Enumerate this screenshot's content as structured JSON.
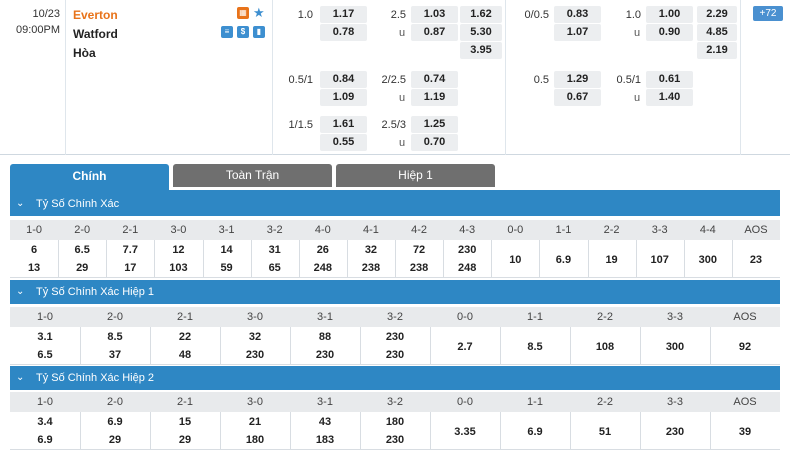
{
  "match": {
    "date": "10/23",
    "time": "09:00PM",
    "home": "Everton",
    "away": "Watford",
    "draw": "Hòa",
    "more_count": "72",
    "icons": [
      "stats-icon",
      "dollar-icon",
      "chart-icon",
      "favorite-star-icon",
      "tv-icon"
    ]
  },
  "odds": {
    "ft_hdp": [
      {
        "line": "1.0",
        "home": "1.17",
        "away": "0.78"
      },
      {
        "line": "0.5/1",
        "home": "0.84",
        "away": "1.09"
      },
      {
        "line": "1/1.5",
        "home": "1.61",
        "away": "0.55"
      }
    ],
    "ft_ou": [
      {
        "line": "2.5",
        "over": "1.03",
        "u": "u",
        "under": "0.87"
      },
      {
        "line": "2/2.5",
        "over": "0.74",
        "u": "u",
        "under": "1.19"
      },
      {
        "line": "2.5/3",
        "over": "1.25",
        "u": "u",
        "under": "0.70"
      }
    ],
    "ft_1x2": [
      "1.62",
      "5.30",
      "3.95"
    ],
    "h1_hdp": [
      {
        "line": "0/0.5",
        "home": "0.83",
        "away": "1.07"
      },
      {
        "line": "0.5",
        "home": "1.29",
        "away": "0.67"
      }
    ],
    "h1_ou": [
      {
        "line": "1.0",
        "over": "1.00",
        "u": "u",
        "under": "0.90"
      },
      {
        "line": "0.5/1",
        "over": "0.61",
        "u": "u",
        "under": "1.40"
      }
    ],
    "h1_1x2": [
      "2.29",
      "4.85",
      "2.19"
    ]
  },
  "tabs": [
    {
      "label": "Chính",
      "active": true
    },
    {
      "label": "Toàn Trận",
      "active": false
    },
    {
      "label": "Hiệp 1",
      "active": false
    }
  ],
  "sections": [
    {
      "title": "Tỷ Số Chính Xác",
      "headers": [
        "1-0",
        "2-0",
        "2-1",
        "3-0",
        "3-1",
        "3-2",
        "4-0",
        "4-1",
        "4-2",
        "4-3",
        "0-0",
        "1-1",
        "2-2",
        "3-3",
        "4-4",
        "AOS"
      ],
      "cells": [
        [
          "6",
          "13"
        ],
        [
          "6.5",
          "29"
        ],
        [
          "7.7",
          "17"
        ],
        [
          "12",
          "103"
        ],
        [
          "14",
          "59"
        ],
        [
          "31",
          "65"
        ],
        [
          "26",
          "248"
        ],
        [
          "32",
          "238"
        ],
        [
          "72",
          "238"
        ],
        [
          "230",
          "248"
        ],
        [
          "10"
        ],
        [
          "6.9"
        ],
        [
          "19"
        ],
        [
          "107"
        ],
        [
          "300"
        ],
        [
          "23"
        ]
      ]
    },
    {
      "title": "Tỷ Số Chính Xác Hiệp 1",
      "headers": [
        "1-0",
        "2-0",
        "2-1",
        "3-0",
        "3-1",
        "3-2",
        "0-0",
        "1-1",
        "2-2",
        "3-3",
        "AOS"
      ],
      "cells": [
        [
          "3.1",
          "6.5"
        ],
        [
          "8.5",
          "37"
        ],
        [
          "22",
          "48"
        ],
        [
          "32",
          "230"
        ],
        [
          "88",
          "230"
        ],
        [
          "230",
          "230"
        ],
        [
          "2.7"
        ],
        [
          "8.5"
        ],
        [
          "108"
        ],
        [
          "300"
        ],
        [
          "92"
        ]
      ]
    },
    {
      "title": "Tỷ Số Chính Xác Hiệp 2",
      "headers": [
        "1-0",
        "2-0",
        "2-1",
        "3-0",
        "3-1",
        "3-2",
        "0-0",
        "1-1",
        "2-2",
        "3-3",
        "AOS"
      ],
      "cells": [
        [
          "3.4",
          "6.9"
        ],
        [
          "6.9",
          "29"
        ],
        [
          "15",
          "29"
        ],
        [
          "21",
          "180"
        ],
        [
          "43",
          "183"
        ],
        [
          "180",
          "230"
        ],
        [
          "3.35"
        ],
        [
          "6.9"
        ],
        [
          "51"
        ],
        [
          "230"
        ],
        [
          "39"
        ]
      ]
    }
  ]
}
